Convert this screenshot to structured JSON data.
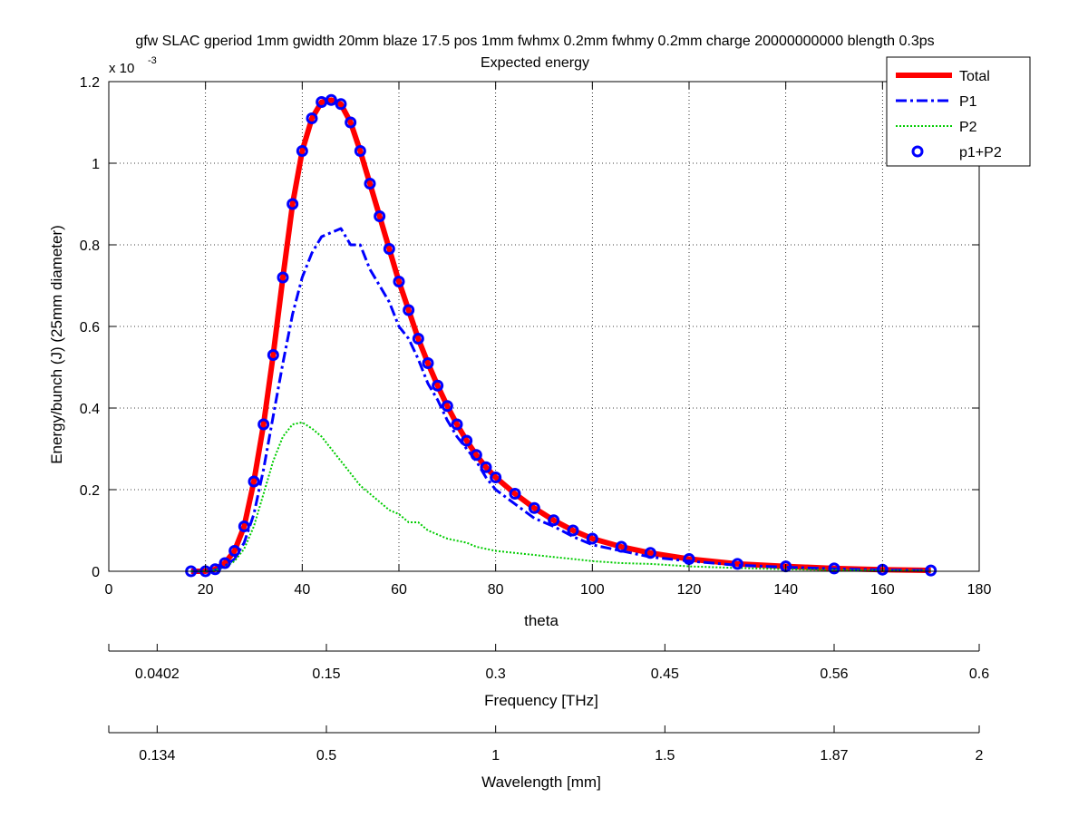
{
  "chart_data": {
    "type": "line",
    "title": "gfw SLAC gperiod 1mm gwidth 20mm blaze 17.5 pos 1mm fwhmx 0.2mm fwhmy 0.2mm charge 20000000000 blength 0.3ps",
    "subtitle": "Expected energy",
    "xlabel": "theta",
    "ylabel": "Energy/bunch (J) (25mm diameter)",
    "y_multiplier": "x 10",
    "y_exponent": "-3",
    "xlim": [
      0,
      180
    ],
    "ylim": [
      0,
      1.2
    ],
    "x_ticks": [
      0,
      20,
      40,
      60,
      80,
      100,
      120,
      140,
      160,
      180
    ],
    "y_ticks": [
      0,
      0.2,
      0.4,
      0.6,
      0.8,
      1,
      1.2
    ],
    "x_tick_labels": [
      "0",
      "20",
      "40",
      "60",
      "80",
      "100",
      "120",
      "140",
      "160",
      "180"
    ],
    "y_tick_labels": [
      "0",
      "0.2",
      "0.4",
      "0.6",
      "0.8",
      "1",
      "1.2"
    ],
    "grid": true,
    "legend_position": "top-right",
    "series": [
      {
        "name": "Total",
        "color": "#ff0000",
        "style": "solid",
        "x": [
          17,
          20,
          22,
          24,
          26,
          28,
          30,
          32,
          34,
          36,
          38,
          40,
          42,
          44,
          46,
          48,
          50,
          52,
          54,
          56,
          58,
          60,
          62,
          64,
          66,
          68,
          70,
          72,
          74,
          76,
          78,
          80,
          84,
          88,
          92,
          96,
          100,
          106,
          112,
          120,
          130,
          140,
          150,
          160,
          170
        ],
        "y": [
          0.0,
          0.0,
          0.005,
          0.02,
          0.05,
          0.11,
          0.22,
          0.36,
          0.53,
          0.72,
          0.9,
          1.03,
          1.11,
          1.15,
          1.155,
          1.145,
          1.1,
          1.03,
          0.95,
          0.87,
          0.79,
          0.71,
          0.64,
          0.57,
          0.51,
          0.455,
          0.405,
          0.36,
          0.32,
          0.285,
          0.255,
          0.23,
          0.19,
          0.155,
          0.125,
          0.1,
          0.08,
          0.06,
          0.045,
          0.03,
          0.018,
          0.012,
          0.007,
          0.004,
          0.002
        ]
      },
      {
        "name": "P1",
        "color": "#0000ff",
        "style": "dashdot",
        "x": [
          17,
          20,
          22,
          24,
          26,
          28,
          30,
          32,
          34,
          36,
          38,
          40,
          42,
          44,
          46,
          48,
          50,
          52,
          54,
          56,
          58,
          60,
          62,
          64,
          66,
          68,
          70,
          72,
          74,
          76,
          78,
          80,
          84,
          88,
          92,
          96,
          100,
          106,
          112,
          120,
          130,
          140,
          150,
          160,
          170
        ],
        "y": [
          0.0,
          0.0,
          0.003,
          0.012,
          0.03,
          0.07,
          0.14,
          0.25,
          0.38,
          0.51,
          0.63,
          0.72,
          0.78,
          0.82,
          0.83,
          0.84,
          0.8,
          0.8,
          0.74,
          0.7,
          0.66,
          0.6,
          0.57,
          0.52,
          0.46,
          0.42,
          0.37,
          0.33,
          0.3,
          0.27,
          0.23,
          0.2,
          0.165,
          0.13,
          0.11,
          0.085,
          0.065,
          0.05,
          0.035,
          0.025,
          0.015,
          0.01,
          0.006,
          0.003,
          0.002
        ]
      },
      {
        "name": "P2",
        "color": "#00cc00",
        "style": "dotted",
        "x": [
          17,
          20,
          22,
          24,
          26,
          28,
          30,
          32,
          34,
          36,
          38,
          40,
          42,
          44,
          46,
          48,
          50,
          52,
          54,
          56,
          58,
          60,
          62,
          64,
          66,
          68,
          70,
          72,
          74,
          76,
          78,
          80,
          84,
          88,
          92,
          96,
          100,
          106,
          112,
          120,
          130,
          140,
          150,
          160,
          170
        ],
        "y": [
          0.0,
          0.0,
          0.003,
          0.01,
          0.025,
          0.055,
          0.11,
          0.19,
          0.27,
          0.33,
          0.36,
          0.365,
          0.35,
          0.33,
          0.3,
          0.27,
          0.24,
          0.21,
          0.19,
          0.17,
          0.15,
          0.14,
          0.12,
          0.12,
          0.1,
          0.09,
          0.08,
          0.075,
          0.07,
          0.06,
          0.055,
          0.05,
          0.045,
          0.04,
          0.035,
          0.03,
          0.025,
          0.02,
          0.018,
          0.012,
          0.008,
          0.005,
          0.003,
          0.002,
          0.001
        ]
      },
      {
        "name": "p1+P2",
        "color": "#0000ff",
        "style": "markers",
        "marker": "circle",
        "x": [
          17,
          20,
          22,
          24,
          26,
          28,
          30,
          32,
          34,
          36,
          38,
          40,
          42,
          44,
          46,
          48,
          50,
          52,
          54,
          56,
          58,
          60,
          62,
          64,
          66,
          68,
          70,
          72,
          74,
          76,
          78,
          80,
          84,
          88,
          92,
          96,
          100,
          106,
          112,
          120,
          130,
          140,
          150,
          160,
          170
        ],
        "y": [
          0.0,
          0.0,
          0.005,
          0.02,
          0.05,
          0.11,
          0.22,
          0.36,
          0.53,
          0.72,
          0.9,
          1.03,
          1.11,
          1.15,
          1.155,
          1.145,
          1.1,
          1.03,
          0.95,
          0.87,
          0.79,
          0.71,
          0.64,
          0.57,
          0.51,
          0.455,
          0.405,
          0.36,
          0.32,
          0.285,
          0.255,
          0.23,
          0.19,
          0.155,
          0.125,
          0.1,
          0.08,
          0.06,
          0.045,
          0.03,
          0.018,
          0.012,
          0.007,
          0.004,
          0.002
        ]
      }
    ],
    "secondary_axes": [
      {
        "label": "Frequency [THz]",
        "ticks": [
          {
            "theta": 10,
            "label": "0.0402"
          },
          {
            "theta": 45,
            "label": "0.15"
          },
          {
            "theta": 80,
            "label": "0.3"
          },
          {
            "theta": 115,
            "label": "0.45"
          },
          {
            "theta": 150,
            "label": "0.56"
          },
          {
            "theta": 180,
            "label": "0.6"
          }
        ]
      },
      {
        "label": "Wavelength [mm]",
        "ticks": [
          {
            "theta": 10,
            "label": "0.134"
          },
          {
            "theta": 45,
            "label": "0.5"
          },
          {
            "theta": 80,
            "label": "1"
          },
          {
            "theta": 115,
            "label": "1.5"
          },
          {
            "theta": 150,
            "label": "1.87"
          },
          {
            "theta": 180,
            "label": "2"
          }
        ]
      }
    ]
  }
}
